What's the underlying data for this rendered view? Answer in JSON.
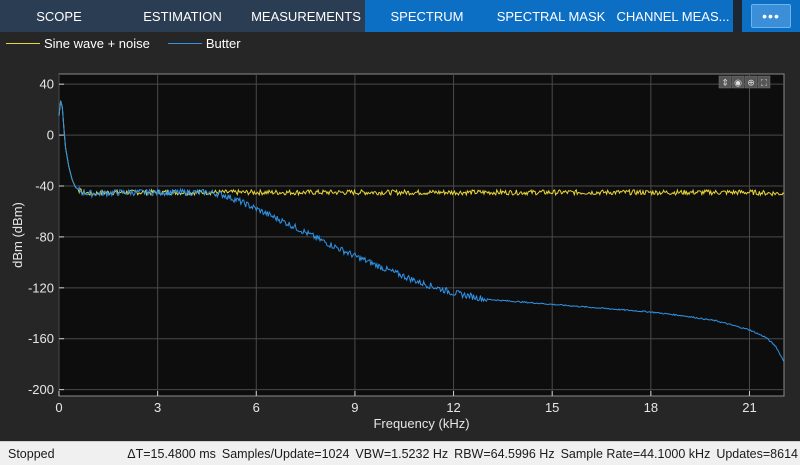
{
  "tabs": [
    {
      "label": "SCOPE",
      "group": "a",
      "width": 118
    },
    {
      "label": "ESTIMATION",
      "group": "a",
      "width": 129
    },
    {
      "label": "MEASUREMENTS",
      "group": "a",
      "width": 118
    },
    {
      "label": "SPECTRUM",
      "group": "b",
      "width": 124
    },
    {
      "label": "SPECTRAL MASK",
      "group": "b",
      "width": 124
    },
    {
      "label": "CHANNEL MEAS...",
      "group": "b",
      "width": 120
    }
  ],
  "more_label": "•••",
  "legend": [
    {
      "label": "Sine wave + noise",
      "color": "#e8d63a"
    },
    {
      "label": "Butter",
      "color": "#2f93e8"
    }
  ],
  "toolbar_icons": [
    "pan-icon",
    "data-cursor-icon",
    "zoom-in-icon",
    "autoscale-icon"
  ],
  "chart_data": {
    "type": "line",
    "xlabel": "Frequency (kHz)",
    "ylabel": "dBm (dBm)",
    "xlim": [
      0,
      22.05
    ],
    "ylim": [
      -205,
      48
    ],
    "xticks": [
      0,
      3,
      6,
      9,
      12,
      15,
      18,
      21
    ],
    "xtick_labels": [
      "0",
      "3",
      "6",
      "9",
      "12",
      "15",
      "18",
      "21"
    ],
    "yticks": [
      40,
      0,
      -40,
      -80,
      -120,
      -160,
      -200
    ],
    "ytick_labels": [
      "40",
      "0",
      "-40",
      "-80",
      "-120",
      "-160",
      "-200"
    ],
    "grid": true,
    "series": [
      {
        "name": "Sine wave + noise",
        "color": "#e8d63a",
        "x": [
          0,
          0.05,
          0.1,
          0.15,
          0.2,
          0.3,
          0.4,
          0.5,
          0.7,
          1.0,
          1.5,
          2.0,
          3.0,
          4.0,
          5.0,
          6.0,
          8.0,
          10.0,
          12.0,
          14.0,
          16.0,
          18.0,
          20.0,
          21.0,
          22.05
        ],
        "y": [
          15,
          27,
          22,
          5,
          -10,
          -25,
          -35,
          -41,
          -45,
          -46,
          -45,
          -45,
          -45,
          -45,
          -45,
          -45,
          -45,
          -45,
          -45,
          -45,
          -45,
          -45,
          -45,
          -45,
          -46
        ]
      },
      {
        "name": "Butter",
        "color": "#2f93e8",
        "x": [
          0,
          0.05,
          0.1,
          0.15,
          0.2,
          0.3,
          0.4,
          0.5,
          0.7,
          1.0,
          2.0,
          3.0,
          4.0,
          4.6,
          5.0,
          5.5,
          6.0,
          7.0,
          8.0,
          9.0,
          10.0,
          11.0,
          12.0,
          13.0,
          14.0,
          15.0,
          16.0,
          17.0,
          18.0,
          19.0,
          20.0,
          21.0,
          21.5,
          21.8,
          22.05
        ],
        "y": [
          15,
          27,
          22,
          5,
          -10,
          -25,
          -35,
          -41,
          -45,
          -46,
          -45,
          -45,
          -45,
          -45,
          -47,
          -52,
          -58,
          -70,
          -83,
          -95,
          -106,
          -116,
          -124,
          -129,
          -131,
          -133,
          -135,
          -137,
          -139,
          -142,
          -146,
          -153,
          -159,
          -166,
          -178
        ]
      }
    ]
  },
  "status": {
    "state": "Stopped",
    "items": [
      "ΔT=15.4800 ms",
      "Samples/Update=1024",
      "VBW=1.5232 Hz",
      "RBW=64.5996 Hz",
      "Sample Rate=44.1000 kHz",
      "Updates=8614"
    ]
  }
}
